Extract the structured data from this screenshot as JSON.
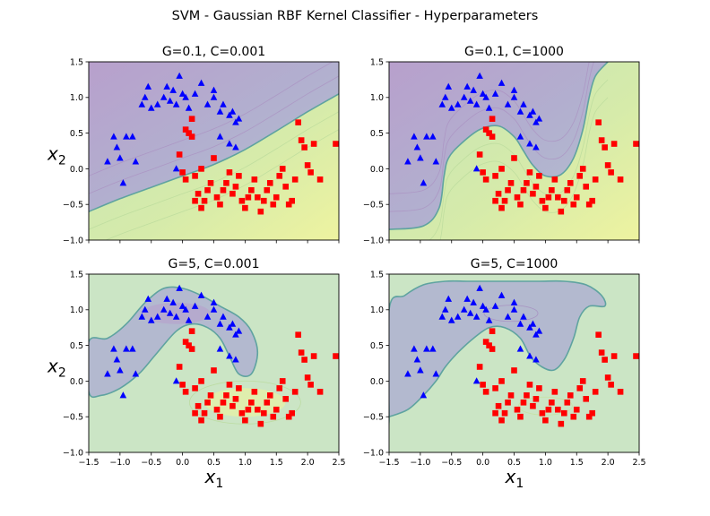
{
  "figure": {
    "suptitle": "SVM - Gaussian RBF Kernel Classifier - Hyperparameters"
  },
  "chart_data": [
    {
      "type": "scatter",
      "title": "G=0.1, C=0.001",
      "xlabel": "",
      "ylabel": "x2",
      "xlim": [
        -1.5,
        2.5
      ],
      "ylim": [
        -1.0,
        1.5
      ],
      "x_ticks": [
        "−1.5",
        "−1.0",
        "−0.5",
        "0.0",
        "0.5",
        "1.0",
        "1.5",
        "2.0",
        "2.5"
      ],
      "y_ticks": [
        "−1.0",
        "−0.5",
        "0.0",
        "0.5",
        "1.0",
        "1.5"
      ],
      "show_x_ticklabels": false,
      "show_y_ticklabels": true,
      "background": "contour",
      "decision_boundary": [
        [
          -1.5,
          -0.6
        ],
        [
          -1.0,
          -0.42
        ],
        [
          -0.5,
          -0.26
        ],
        [
          0.0,
          -0.1
        ],
        [
          0.5,
          0.06
        ],
        [
          1.0,
          0.27
        ],
        [
          1.5,
          0.53
        ],
        [
          2.0,
          0.8
        ],
        [
          2.5,
          1.05
        ]
      ]
    },
    {
      "type": "scatter",
      "title": "G=0.1, C=1000",
      "xlabel": "",
      "ylabel": "",
      "xlim": [
        -1.5,
        2.5
      ],
      "ylim": [
        -1.0,
        1.5
      ],
      "x_ticks": [
        "−1.5",
        "−1.0",
        "−0.5",
        "0.0",
        "0.5",
        "1.0",
        "1.5",
        "2.0",
        "2.5"
      ],
      "y_ticks": [
        "−1.0",
        "−0.5",
        "0.0",
        "0.5",
        "1.0",
        "1.5"
      ],
      "show_x_ticklabels": false,
      "show_y_ticklabels": true,
      "background": "contour",
      "decision_boundary": [
        [
          -1.5,
          -0.85
        ],
        [
          -0.95,
          -0.8
        ],
        [
          -0.7,
          -0.55
        ],
        [
          -0.62,
          -0.1
        ],
        [
          -0.55,
          0.15
        ],
        [
          -0.35,
          0.35
        ],
        [
          -0.05,
          0.55
        ],
        [
          0.25,
          0.6
        ],
        [
          0.5,
          0.45
        ],
        [
          0.65,
          0.25
        ],
        [
          0.8,
          0.05
        ],
        [
          1.0,
          -0.1
        ],
        [
          1.25,
          -0.08
        ],
        [
          1.45,
          0.15
        ],
        [
          1.6,
          0.55
        ],
        [
          1.7,
          1.0
        ],
        [
          1.8,
          1.3
        ],
        [
          2.0,
          1.5
        ]
      ]
    },
    {
      "type": "scatter",
      "title": "G=5, C=0.001",
      "xlabel": "x1",
      "ylabel": "x2",
      "xlim": [
        -1.5,
        2.5
      ],
      "ylim": [
        -1.0,
        1.5
      ],
      "x_ticks": [
        "−1.5",
        "−1.0",
        "−0.5",
        "0.0",
        "0.5",
        "1.0",
        "1.5",
        "2.0",
        "2.5"
      ],
      "y_ticks": [
        "−1.0",
        "−0.5",
        "0.0",
        "0.5",
        "1.0",
        "1.5"
      ],
      "show_x_ticklabels": true,
      "show_y_ticklabels": true,
      "background": "contour",
      "decision_boundary_closed": [
        [
          -1.5,
          0.55
        ],
        [
          -1.2,
          0.6
        ],
        [
          -0.9,
          0.8
        ],
        [
          -0.6,
          1.1
        ],
        [
          -0.3,
          1.3
        ],
        [
          0.0,
          1.3
        ],
        [
          0.3,
          1.2
        ],
        [
          0.6,
          1.05
        ],
        [
          0.9,
          0.9
        ],
        [
          1.1,
          0.7
        ],
        [
          1.2,
          0.4
        ],
        [
          1.1,
          0.1
        ],
        [
          0.9,
          0.1
        ],
        [
          0.75,
          0.35
        ],
        [
          0.6,
          0.6
        ],
        [
          0.4,
          0.75
        ],
        [
          0.15,
          0.8
        ],
        [
          -0.1,
          0.7
        ],
        [
          -0.45,
          0.35
        ],
        [
          -0.7,
          0.1
        ],
        [
          -1.0,
          -0.1
        ],
        [
          -1.3,
          -0.2
        ],
        [
          -1.5,
          -0.15
        ]
      ]
    },
    {
      "type": "scatter",
      "title": "G=5, C=1000",
      "xlabel": "x1",
      "ylabel": "",
      "xlim": [
        -1.5,
        2.5
      ],
      "ylim": [
        -1.0,
        1.5
      ],
      "x_ticks": [
        "−1.5",
        "−1.0",
        "−0.5",
        "0.0",
        "0.5",
        "1.0",
        "1.5",
        "2.0",
        "2.5"
      ],
      "y_ticks": [
        "−1.0",
        "−0.5",
        "0.0",
        "0.5",
        "1.0",
        "1.5"
      ],
      "show_x_ticklabels": true,
      "show_y_ticklabels": true,
      "background": "contour",
      "decision_boundary_closed": [
        [
          -1.5,
          -0.5
        ],
        [
          -1.5,
          1.0
        ],
        [
          -1.25,
          1.2
        ],
        [
          -0.95,
          1.35
        ],
        [
          -0.6,
          1.4
        ],
        [
          -0.25,
          1.4
        ],
        [
          0.05,
          1.4
        ],
        [
          0.45,
          1.4
        ],
        [
          0.9,
          1.4
        ],
        [
          1.3,
          1.4
        ],
        [
          1.65,
          1.35
        ],
        [
          1.9,
          1.2
        ],
        [
          1.95,
          1.05
        ],
        [
          1.7,
          1.05
        ],
        [
          1.55,
          0.9
        ],
        [
          1.45,
          0.6
        ],
        [
          1.3,
          0.3
        ],
        [
          1.1,
          0.15
        ],
        [
          0.8,
          0.3
        ],
        [
          0.6,
          0.6
        ],
        [
          0.35,
          0.75
        ],
        [
          0.1,
          0.75
        ],
        [
          -0.15,
          0.6
        ],
        [
          -0.4,
          0.4
        ],
        [
          -0.6,
          0.2
        ],
        [
          -0.75,
          0.0
        ],
        [
          -0.95,
          -0.2
        ],
        [
          -1.2,
          -0.4
        ],
        [
          -1.5,
          -0.5
        ]
      ]
    }
  ],
  "points": {
    "class_0_marker": "blue-triangle",
    "class_1_marker": "red-square",
    "class_0_color": "#0000ff",
    "class_1_color": "#ff0000",
    "class_0": [
      [
        -1.2,
        0.1
      ],
      [
        -1.1,
        0.45
      ],
      [
        -1.05,
        0.3
      ],
      [
        -1.0,
        0.15
      ],
      [
        -0.95,
        -0.2
      ],
      [
        -0.9,
        0.45
      ],
      [
        -0.8,
        0.45
      ],
      [
        -0.75,
        0.1
      ],
      [
        -0.65,
        0.9
      ],
      [
        -0.6,
        1.0
      ],
      [
        -0.55,
        1.15
      ],
      [
        -0.5,
        0.85
      ],
      [
        -0.4,
        0.9
      ],
      [
        -0.3,
        1.0
      ],
      [
        -0.25,
        1.15
      ],
      [
        -0.2,
        0.95
      ],
      [
        -0.1,
        0.9
      ],
      [
        -0.05,
        1.3
      ],
      [
        0.05,
        1.0
      ],
      [
        0.1,
        0.85
      ],
      [
        0.2,
        1.05
      ],
      [
        0.3,
        1.2
      ],
      [
        0.4,
        0.9
      ],
      [
        0.5,
        1.1
      ],
      [
        0.6,
        0.8
      ],
      [
        0.65,
        0.9
      ],
      [
        0.75,
        0.75
      ],
      [
        0.8,
        0.8
      ],
      [
        0.85,
        0.65
      ],
      [
        0.9,
        0.7
      ],
      [
        0.6,
        0.45
      ],
      [
        0.75,
        0.35
      ],
      [
        0.85,
        0.3
      ],
      [
        -0.1,
        0.0
      ],
      [
        -0.15,
        1.1
      ],
      [
        0.0,
        1.05
      ],
      [
        0.5,
        1.0
      ]
    ],
    "class_1": [
      [
        0.0,
        -0.05
      ],
      [
        0.05,
        -0.15
      ],
      [
        0.1,
        0.5
      ],
      [
        0.15,
        0.45
      ],
      [
        0.2,
        -0.1
      ],
      [
        0.2,
        -0.45
      ],
      [
        0.25,
        -0.35
      ],
      [
        0.3,
        0.0
      ],
      [
        0.3,
        -0.55
      ],
      [
        0.35,
        -0.45
      ],
      [
        0.4,
        -0.3
      ],
      [
        0.45,
        -0.2
      ],
      [
        0.5,
        0.15
      ],
      [
        0.55,
        -0.4
      ],
      [
        0.6,
        -0.5
      ],
      [
        0.65,
        -0.3
      ],
      [
        0.7,
        -0.2
      ],
      [
        0.75,
        -0.05
      ],
      [
        0.8,
        -0.35
      ],
      [
        0.85,
        -0.25
      ],
      [
        0.9,
        -0.1
      ],
      [
        0.95,
        -0.45
      ],
      [
        1.0,
        -0.55
      ],
      [
        1.05,
        -0.4
      ],
      [
        1.1,
        -0.3
      ],
      [
        1.15,
        -0.15
      ],
      [
        1.2,
        -0.4
      ],
      [
        1.25,
        -0.6
      ],
      [
        1.3,
        -0.45
      ],
      [
        1.35,
        -0.3
      ],
      [
        1.4,
        -0.2
      ],
      [
        1.45,
        -0.5
      ],
      [
        1.5,
        -0.4
      ],
      [
        1.55,
        -0.1
      ],
      [
        1.6,
        0.0
      ],
      [
        1.65,
        -0.25
      ],
      [
        1.7,
        -0.5
      ],
      [
        1.75,
        -0.45
      ],
      [
        1.8,
        -0.15
      ],
      [
        1.85,
        0.65
      ],
      [
        1.9,
        0.4
      ],
      [
        1.95,
        0.3
      ],
      [
        2.0,
        0.05
      ],
      [
        2.05,
        -0.05
      ],
      [
        2.1,
        0.35
      ],
      [
        2.2,
        -0.15
      ],
      [
        2.45,
        0.35
      ],
      [
        -0.05,
        0.2
      ],
      [
        0.05,
        0.55
      ],
      [
        0.15,
        0.7
      ]
    ]
  }
}
